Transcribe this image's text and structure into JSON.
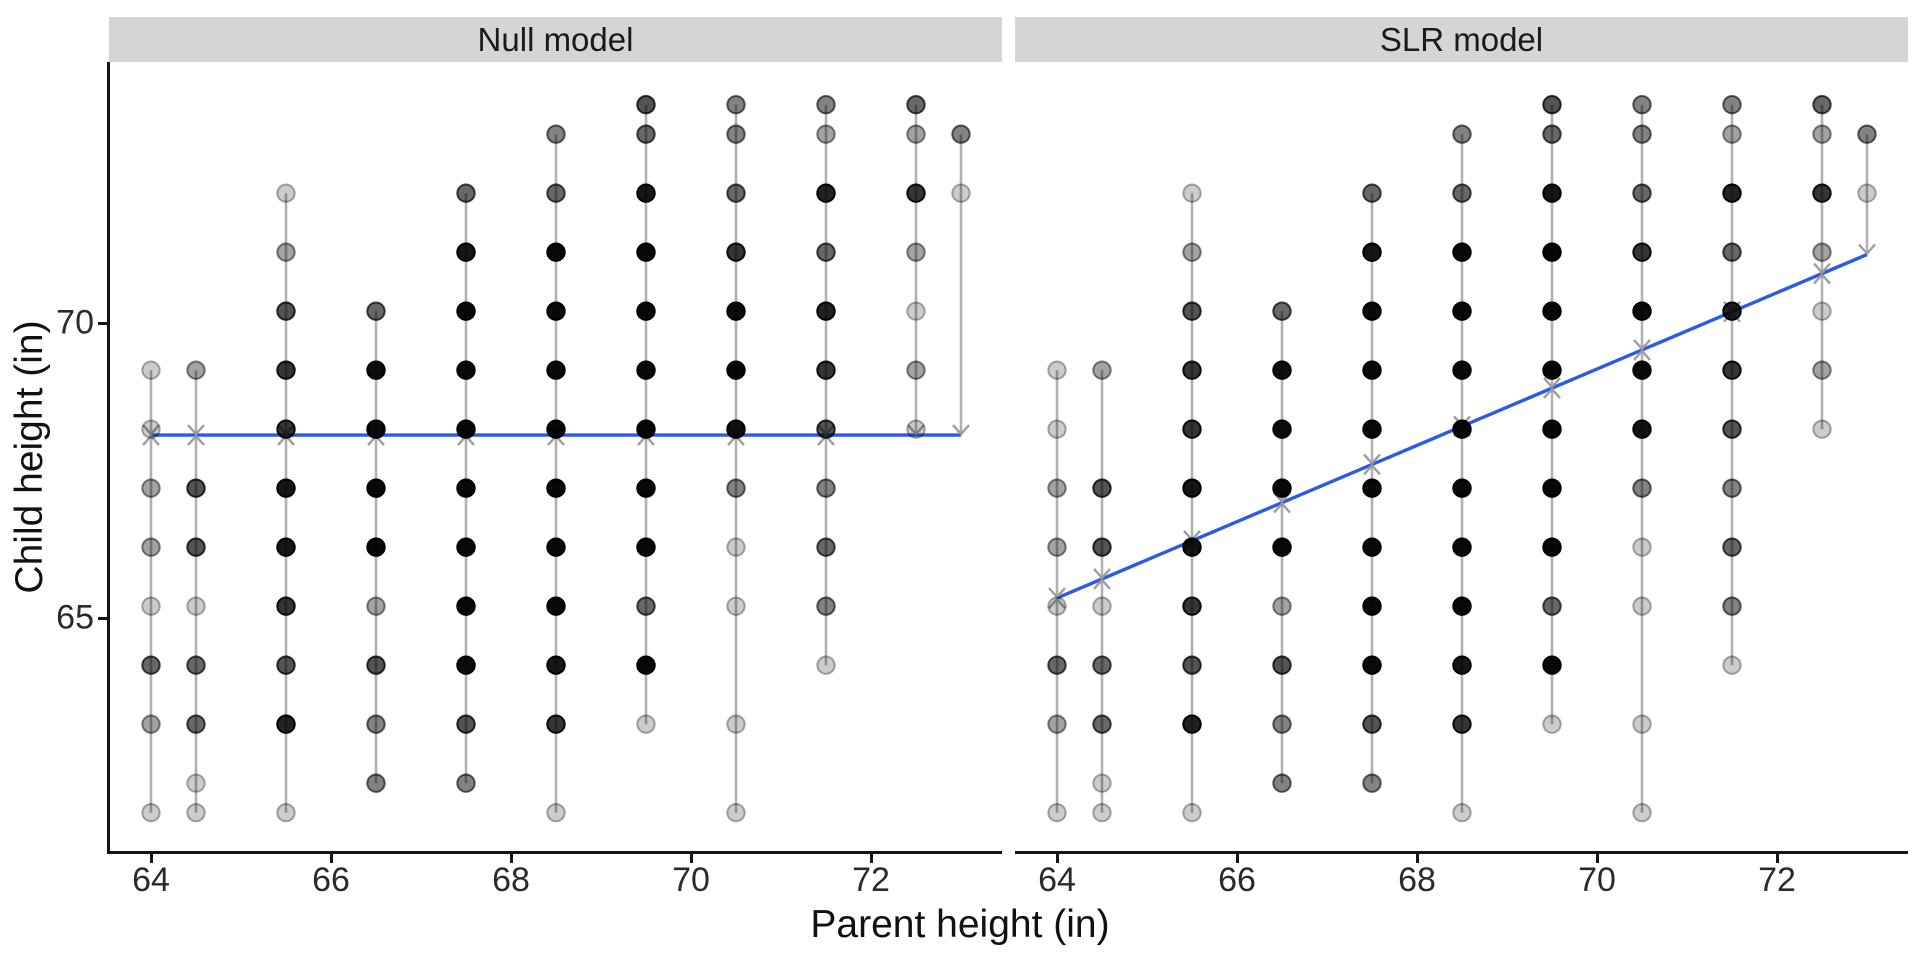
{
  "chart_data": {
    "type": "scatter",
    "title": "",
    "xlabel": "Parent height (in)",
    "ylabel": "Child height (in)",
    "x_axis": {
      "ticks": [
        64,
        66,
        68,
        70,
        72
      ],
      "data_range": [
        64,
        73
      ]
    },
    "y_axis": {
      "ticks": [
        65,
        70
      ],
      "data_range": [
        61.7,
        73.7
      ]
    },
    "facets": [
      {
        "label": "Null model",
        "fit": {
          "type": "constant",
          "mean": 68.1
        }
      },
      {
        "label": "SLR model",
        "fit": {
          "type": "linear",
          "slope": 0.647,
          "intercept": 23.93,
          "endpoints": [
            [
              64,
              65.34
            ],
            [
              73,
              71.16
            ]
          ]
        }
      }
    ],
    "points_note": "Galton parent/child height grid; each entry is [child_height_in, count]; point opacity encodes count via alpha stacking",
    "columns": [
      {
        "parent": 64.0,
        "children": [
          [
            61.7,
            1
          ],
          [
            63.2,
            2
          ],
          [
            64.2,
            4
          ],
          [
            65.2,
            1
          ],
          [
            66.2,
            2
          ],
          [
            67.2,
            2
          ],
          [
            68.2,
            1
          ],
          [
            69.2,
            1
          ]
        ]
      },
      {
        "parent": 64.5,
        "children": [
          [
            61.7,
            1
          ],
          [
            62.2,
            1
          ],
          [
            63.2,
            4
          ],
          [
            64.2,
            4
          ],
          [
            65.2,
            1
          ],
          [
            66.2,
            5
          ],
          [
            67.2,
            5
          ],
          [
            69.2,
            2
          ]
        ]
      },
      {
        "parent": 65.5,
        "children": [
          [
            61.7,
            1
          ],
          [
            63.2,
            9
          ],
          [
            64.2,
            5
          ],
          [
            65.2,
            7
          ],
          [
            66.2,
            11
          ],
          [
            67.2,
            11
          ],
          [
            68.2,
            7
          ],
          [
            69.2,
            7
          ],
          [
            70.2,
            5
          ],
          [
            71.2,
            2
          ],
          [
            72.2,
            1
          ]
        ]
      },
      {
        "parent": 66.5,
        "children": [
          [
            62.2,
            3
          ],
          [
            63.2,
            3
          ],
          [
            64.2,
            5
          ],
          [
            65.2,
            2
          ],
          [
            66.2,
            17
          ],
          [
            67.2,
            17
          ],
          [
            68.2,
            14
          ],
          [
            69.2,
            13
          ],
          [
            70.2,
            4
          ]
        ]
      },
      {
        "parent": 67.5,
        "children": [
          [
            62.2,
            3
          ],
          [
            63.2,
            5
          ],
          [
            64.2,
            14
          ],
          [
            65.2,
            15
          ],
          [
            66.2,
            36
          ],
          [
            67.2,
            38
          ],
          [
            68.2,
            28
          ],
          [
            69.2,
            38
          ],
          [
            70.2,
            19
          ],
          [
            71.2,
            11
          ],
          [
            72.2,
            4
          ]
        ]
      },
      {
        "parent": 68.5,
        "children": [
          [
            61.7,
            1
          ],
          [
            63.2,
            7
          ],
          [
            64.2,
            11
          ],
          [
            65.2,
            16
          ],
          [
            66.2,
            25
          ],
          [
            67.2,
            31
          ],
          [
            68.2,
            34
          ],
          [
            69.2,
            48
          ],
          [
            70.2,
            21
          ],
          [
            71.2,
            18
          ],
          [
            72.2,
            4
          ],
          [
            73.2,
            3
          ]
        ]
      },
      {
        "parent": 69.5,
        "children": [
          [
            63.2,
            1
          ],
          [
            64.2,
            16
          ],
          [
            65.2,
            4
          ],
          [
            66.2,
            17
          ],
          [
            67.2,
            27
          ],
          [
            68.2,
            20
          ],
          [
            69.2,
            33
          ],
          [
            70.2,
            25
          ],
          [
            71.2,
            20
          ],
          [
            72.2,
            11
          ],
          [
            73.2,
            4
          ],
          [
            73.7,
            5
          ]
        ]
      },
      {
        "parent": 70.5,
        "children": [
          [
            61.7,
            1
          ],
          [
            63.2,
            1
          ],
          [
            65.2,
            1
          ],
          [
            66.2,
            1
          ],
          [
            67.2,
            3
          ],
          [
            68.2,
            12
          ],
          [
            69.2,
            18
          ],
          [
            70.2,
            14
          ],
          [
            71.2,
            7
          ],
          [
            72.2,
            4
          ],
          [
            73.2,
            3
          ],
          [
            73.7,
            3
          ]
        ]
      },
      {
        "parent": 71.5,
        "children": [
          [
            64.2,
            1
          ],
          [
            65.2,
            3
          ],
          [
            66.2,
            4
          ],
          [
            67.2,
            3
          ],
          [
            68.2,
            5
          ],
          [
            69.2,
            7
          ],
          [
            70.2,
            9
          ],
          [
            71.2,
            4
          ],
          [
            72.2,
            9
          ],
          [
            73.2,
            2
          ],
          [
            73.7,
            3
          ]
        ]
      },
      {
        "parent": 72.5,
        "children": [
          [
            68.2,
            1
          ],
          [
            69.2,
            2
          ],
          [
            70.2,
            1
          ],
          [
            71.2,
            2
          ],
          [
            72.2,
            7
          ],
          [
            73.2,
            2
          ],
          [
            73.7,
            4
          ]
        ]
      },
      {
        "parent": 73.0,
        "children": [
          [
            72.2,
            1
          ],
          [
            73.2,
            3
          ]
        ]
      }
    ],
    "style": {
      "fit_line_color": "#2b59e8",
      "point_color": "#000000",
      "residual_line_color": "#a3a3a3",
      "arrow_color": "#999999",
      "strip_bg": "#d5d5d5",
      "axis_color": "#151515",
      "base_alpha": 0.2
    }
  }
}
